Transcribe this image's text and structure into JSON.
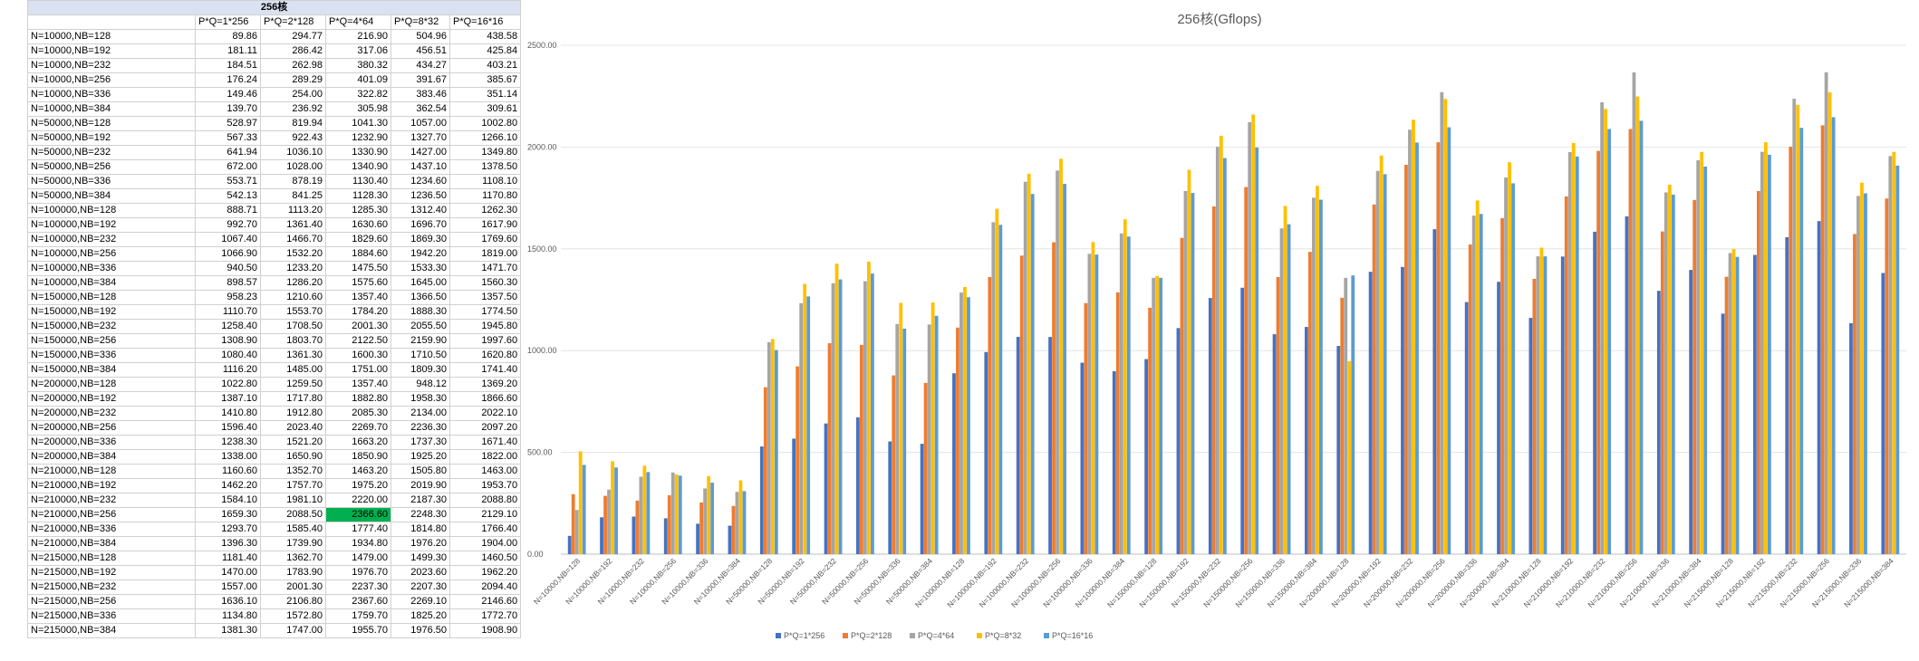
{
  "table": {
    "title": "256核",
    "headers": [
      "P*Q=1*256",
      "P*Q=2*128",
      "P*Q=4*64",
      "P*Q=8*32",
      "P*Q=16*16"
    ],
    "rows": [
      {
        "label": "N=10000,NB=128",
        "values": [
          "89.86",
          "294.77",
          "216.90",
          "504.96",
          "438.58"
        ]
      },
      {
        "label": "N=10000,NB=192",
        "values": [
          "181.11",
          "286.42",
          "317.06",
          "456.51",
          "425.84"
        ]
      },
      {
        "label": "N=10000,NB=232",
        "values": [
          "184.51",
          "262.98",
          "380.32",
          "434.27",
          "403.21"
        ]
      },
      {
        "label": "N=10000,NB=256",
        "values": [
          "176.24",
          "289.29",
          "401.09",
          "391.67",
          "385.67"
        ]
      },
      {
        "label": "N=10000,NB=336",
        "values": [
          "149.46",
          "254.00",
          "322.82",
          "383.46",
          "351.14"
        ]
      },
      {
        "label": "N=10000,NB=384",
        "values": [
          "139.70",
          "236.92",
          "305.98",
          "362.54",
          "309.61"
        ]
      },
      {
        "label": "N=50000,NB=128",
        "values": [
          "528.97",
          "819.94",
          "1041.30",
          "1057.00",
          "1002.80"
        ]
      },
      {
        "label": "N=50000,NB=192",
        "values": [
          "567.33",
          "922.43",
          "1232.90",
          "1327.70",
          "1266.10"
        ]
      },
      {
        "label": "N=50000,NB=232",
        "values": [
          "641.94",
          "1036.10",
          "1330.90",
          "1427.00",
          "1349.80"
        ]
      },
      {
        "label": "N=50000,NB=256",
        "values": [
          "672.00",
          "1028.00",
          "1340.90",
          "1437.10",
          "1378.50"
        ]
      },
      {
        "label": "N=50000,NB=336",
        "values": [
          "553.71",
          "878.19",
          "1130.40",
          "1234.60",
          "1108.10"
        ]
      },
      {
        "label": "N=50000,NB=384",
        "values": [
          "542.13",
          "841.25",
          "1128.30",
          "1236.50",
          "1170.80"
        ]
      },
      {
        "label": "N=100000,NB=128",
        "values": [
          "888.71",
          "1113.20",
          "1285.30",
          "1312.40",
          "1262.30"
        ]
      },
      {
        "label": "N=100000,NB=192",
        "values": [
          "992.70",
          "1361.40",
          "1630.60",
          "1696.70",
          "1617.90"
        ]
      },
      {
        "label": "N=100000,NB=232",
        "values": [
          "1067.40",
          "1466.70",
          "1829.60",
          "1869.30",
          "1769.60"
        ]
      },
      {
        "label": "N=100000,NB=256",
        "values": [
          "1066.90",
          "1532.20",
          "1884.60",
          "1942.20",
          "1819.00"
        ]
      },
      {
        "label": "N=100000,NB=336",
        "values": [
          "940.50",
          "1233.20",
          "1475.50",
          "1533.30",
          "1471.70"
        ]
      },
      {
        "label": "N=100000,NB=384",
        "values": [
          "898.57",
          "1286.20",
          "1575.60",
          "1645.00",
          "1560.30"
        ]
      },
      {
        "label": "N=150000,NB=128",
        "values": [
          "958.23",
          "1210.60",
          "1357.40",
          "1366.50",
          "1357.50"
        ]
      },
      {
        "label": "N=150000,NB=192",
        "values": [
          "1110.70",
          "1553.70",
          "1784.20",
          "1888.30",
          "1774.50"
        ]
      },
      {
        "label": "N=150000,NB=232",
        "values": [
          "1258.40",
          "1708.50",
          "2001.30",
          "2055.50",
          "1945.80"
        ]
      },
      {
        "label": "N=150000,NB=256",
        "values": [
          "1308.90",
          "1803.70",
          "2122.50",
          "2159.90",
          "1997.60"
        ]
      },
      {
        "label": "N=150000,NB=336",
        "values": [
          "1080.40",
          "1361.30",
          "1600.30",
          "1710.50",
          "1620.80"
        ]
      },
      {
        "label": "N=150000,NB=384",
        "values": [
          "1116.20",
          "1485.00",
          "1751.00",
          "1809.30",
          "1741.40"
        ]
      },
      {
        "label": "N=200000,NB=128",
        "values": [
          "1022.80",
          "1259.50",
          "1357.40",
          "948.12",
          "1369.20"
        ]
      },
      {
        "label": "N=200000,NB=192",
        "values": [
          "1387.10",
          "1717.80",
          "1882.80",
          "1958.30",
          "1866.60"
        ]
      },
      {
        "label": "N=200000,NB=232",
        "values": [
          "1410.80",
          "1912.80",
          "2085.30",
          "2134.00",
          "2022.10"
        ]
      },
      {
        "label": "N=200000,NB=256",
        "values": [
          "1596.40",
          "2023.40",
          "2269.70",
          "2236.30",
          "2097.20"
        ]
      },
      {
        "label": "N=200000,NB=336",
        "values": [
          "1238.30",
          "1521.20",
          "1663.20",
          "1737.30",
          "1671.40"
        ]
      },
      {
        "label": "N=200000,NB=384",
        "values": [
          "1338.00",
          "1650.90",
          "1850.90",
          "1925.20",
          "1822.00"
        ]
      },
      {
        "label": "N=210000,NB=128",
        "values": [
          "1160.60",
          "1352.70",
          "1463.20",
          "1505.80",
          "1463.00"
        ]
      },
      {
        "label": "N=210000,NB=192",
        "values": [
          "1462.20",
          "1757.70",
          "1975.20",
          "2019.90",
          "1953.70"
        ]
      },
      {
        "label": "N=210000,NB=232",
        "values": [
          "1584.10",
          "1981.10",
          "2220.00",
          "2187.30",
          "2088.80"
        ]
      },
      {
        "label": "N=210000,NB=256",
        "values": [
          "1659.30",
          "2088.50",
          "2366.60",
          "2248.30",
          "2129.10"
        ]
      },
      {
        "label": "N=210000,NB=336",
        "values": [
          "1293.70",
          "1585.40",
          "1777.40",
          "1814.80",
          "1766.40"
        ]
      },
      {
        "label": "N=210000,NB=384",
        "values": [
          "1396.30",
          "1739.90",
          "1934.80",
          "1976.20",
          "1904.00"
        ]
      },
      {
        "label": "N=215000,NB=128",
        "values": [
          "1181.40",
          "1362.70",
          "1479.00",
          "1499.30",
          "1460.50"
        ]
      },
      {
        "label": "N=215000,NB=192",
        "values": [
          "1470.00",
          "1783.90",
          "1976.70",
          "2023.60",
          "1962.20"
        ]
      },
      {
        "label": "N=215000,NB=232",
        "values": [
          "1557.00",
          "2001.30",
          "2237.30",
          "2207.30",
          "2094.40"
        ]
      },
      {
        "label": "N=215000,NB=256",
        "values": [
          "1636.10",
          "2106.80",
          "2367.60",
          "2269.10",
          "2146.60"
        ]
      },
      {
        "label": "N=215000,NB=336",
        "values": [
          "1134.80",
          "1572.80",
          "1759.70",
          "1825.20",
          "1772.70"
        ]
      },
      {
        "label": "N=215000,NB=384",
        "values": [
          "1381.30",
          "1747.00",
          "1955.70",
          "1976.50",
          "1908.90"
        ]
      }
    ],
    "highlight_color": "#00b050"
  },
  "chart_data": {
    "type": "bar",
    "title": "256核(Gflops)",
    "xlabel": "",
    "ylabel": "",
    "ylim": [
      0,
      2500
    ],
    "yticks": [
      "0.00",
      "500.00",
      "1000.00",
      "1500.00",
      "2000.00",
      "2500.00"
    ],
    "grid": true,
    "legend_position": "bottom",
    "categories": [
      "N=10000,NB=128",
      "N=10000,NB=192",
      "N=10000,NB=232",
      "N=10000,NB=256",
      "N=10000,NB=336",
      "N=10000,NB=384",
      "N=50000,NB=128",
      "N=50000,NB=192",
      "N=50000,NB=232",
      "N=50000,NB=256",
      "N=50000,NB=336",
      "N=50000,NB=384",
      "N=100000,NB=128",
      "N=100000,NB=192",
      "N=100000,NB=232",
      "N=100000,NB=256",
      "N=100000,NB=336",
      "N=100000,NB=384",
      "N=150000,NB=128",
      "N=150000,NB=192",
      "N=150000,NB=232",
      "N=150000,NB=256",
      "N=150000,NB=336",
      "N=150000,NB=384",
      "N=200000,NB=128",
      "N=200000,NB=192",
      "N=200000,NB=232",
      "N=200000,NB=256",
      "N=200000,NB=336",
      "N=200000,NB=384",
      "N=210000,NB=128",
      "N=210000,NB=192",
      "N=210000,NB=232",
      "N=210000,NB=256",
      "N=210000,NB=336",
      "N=210000,NB=384",
      "N=215000,NB=128",
      "N=215000,NB=192",
      "N=215000,NB=232",
      "N=215000,NB=256",
      "N=215000,NB=336",
      "N=215000,NB=384"
    ],
    "series": [
      {
        "name": "P*Q=1*256",
        "color": "#4472c4",
        "values": [
          89.86,
          181.11,
          184.51,
          176.24,
          149.46,
          139.7,
          528.97,
          567.33,
          641.94,
          672.0,
          553.71,
          542.13,
          888.71,
          992.7,
          1067.4,
          1066.9,
          940.5,
          898.57,
          958.23,
          1110.7,
          1258.4,
          1308.9,
          1080.4,
          1116.2,
          1022.8,
          1387.1,
          1410.8,
          1596.4,
          1238.3,
          1338.0,
          1160.6,
          1462.2,
          1584.1,
          1659.3,
          1293.7,
          1396.3,
          1181.4,
          1470.0,
          1557.0,
          1636.1,
          1134.8,
          1381.3
        ]
      },
      {
        "name": "P*Q=2*128",
        "color": "#ed7d31",
        "values": [
          294.77,
          286.42,
          262.98,
          289.29,
          254.0,
          236.92,
          819.94,
          922.43,
          1036.1,
          1028.0,
          878.19,
          841.25,
          1113.2,
          1361.4,
          1466.7,
          1532.2,
          1233.2,
          1286.2,
          1210.6,
          1553.7,
          1708.5,
          1803.7,
          1361.3,
          1485.0,
          1259.5,
          1717.8,
          1912.8,
          2023.4,
          1521.2,
          1650.9,
          1352.7,
          1757.7,
          1981.1,
          2088.5,
          1585.4,
          1739.9,
          1362.7,
          1783.9,
          2001.3,
          2106.8,
          1572.8,
          1747.0
        ]
      },
      {
        "name": "P*Q=4*64",
        "color": "#a5a5a5",
        "values": [
          216.9,
          317.06,
          380.32,
          401.09,
          322.82,
          305.98,
          1041.3,
          1232.9,
          1330.9,
          1340.9,
          1130.4,
          1128.3,
          1285.3,
          1630.6,
          1829.6,
          1884.6,
          1475.5,
          1575.6,
          1357.4,
          1784.2,
          2001.3,
          2122.5,
          1600.3,
          1751.0,
          1357.4,
          1882.8,
          2085.3,
          2269.7,
          1663.2,
          1850.9,
          1463.2,
          1975.2,
          2220.0,
          2366.6,
          1777.4,
          1934.8,
          1479.0,
          1976.7,
          2237.3,
          2367.6,
          1759.7,
          1955.7
        ]
      },
      {
        "name": "P*Q=8*32",
        "color": "#ffc000",
        "values": [
          504.96,
          456.51,
          434.27,
          391.67,
          383.46,
          362.54,
          1057.0,
          1327.7,
          1427.0,
          1437.1,
          1234.6,
          1236.5,
          1312.4,
          1696.7,
          1869.3,
          1942.2,
          1533.3,
          1645.0,
          1366.5,
          1888.3,
          2055.5,
          2159.9,
          1710.5,
          1809.3,
          948.12,
          1958.3,
          2134.0,
          2236.3,
          1737.3,
          1925.2,
          1505.8,
          2019.9,
          2187.3,
          2248.3,
          1814.8,
          1976.2,
          1499.3,
          2023.6,
          2207.3,
          2269.1,
          1825.2,
          1976.5
        ]
      },
      {
        "name": "P*Q=16*16",
        "color": "#5b9bd5",
        "values": [
          438.58,
          425.84,
          403.21,
          385.67,
          351.14,
          309.61,
          1002.8,
          1266.1,
          1349.8,
          1378.5,
          1108.1,
          1170.8,
          1262.3,
          1617.9,
          1769.6,
          1819.0,
          1471.7,
          1560.3,
          1357.5,
          1774.5,
          1945.8,
          1997.6,
          1620.8,
          1741.4,
          1369.2,
          1866.6,
          2022.1,
          2097.2,
          1671.4,
          1822.0,
          1463.0,
          1953.7,
          2088.8,
          2129.1,
          1766.4,
          1904.0,
          1460.5,
          1962.2,
          2094.4,
          2146.6,
          1772.7,
          1908.9
        ]
      }
    ]
  }
}
